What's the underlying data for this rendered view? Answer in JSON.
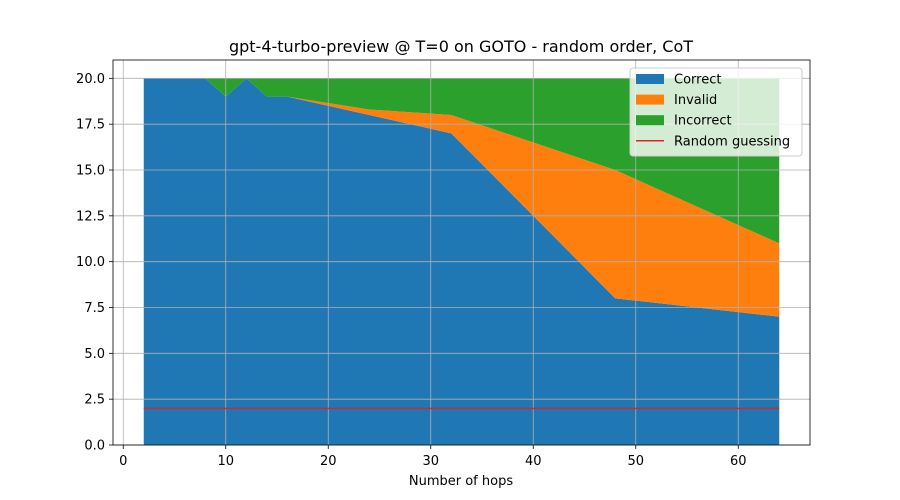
{
  "chart_data": {
    "type": "area",
    "stacked": true,
    "title": "gpt-4-turbo-preview @ T=0 on GOTO - random order, CoT",
    "xlabel": "Number of hops",
    "ylabel": "",
    "xlim": [
      -1,
      67
    ],
    "ylim": [
      0,
      21
    ],
    "xticks": [
      0,
      10,
      20,
      30,
      40,
      50,
      60
    ],
    "yticks": [
      0.0,
      2.5,
      5.0,
      7.5,
      10.0,
      12.5,
      15.0,
      17.5,
      20.0
    ],
    "ytick_labels": [
      "0.0",
      "2.5",
      "5.0",
      "7.5",
      "10.0",
      "12.5",
      "15.0",
      "17.5",
      "20.0"
    ],
    "grid": true,
    "x": [
      2,
      4,
      6,
      8,
      10,
      12,
      14,
      16,
      24,
      32,
      48,
      64
    ],
    "series": [
      {
        "name": "Correct",
        "color": "#1f77b4",
        "values": [
          20,
          20,
          20,
          20,
          19,
          20,
          19,
          19,
          18,
          17,
          8,
          7
        ]
      },
      {
        "name": "Invalid",
        "color": "#ff7f0e",
        "values": [
          0,
          0,
          0,
          0,
          0,
          0,
          0,
          0,
          0.3,
          1,
          7,
          4
        ]
      },
      {
        "name": "Incorrect",
        "color": "#2ca02c",
        "values": [
          0,
          0,
          0,
          0,
          1,
          0,
          1,
          1,
          1.7,
          2,
          5,
          9
        ]
      }
    ],
    "reference_line": {
      "name": "Random guessing",
      "color": "#d62728",
      "y": 2,
      "x_range": [
        2,
        64
      ]
    },
    "legend_position": "top-right",
    "legend": [
      "Correct",
      "Invalid",
      "Incorrect",
      "Random guessing"
    ]
  }
}
